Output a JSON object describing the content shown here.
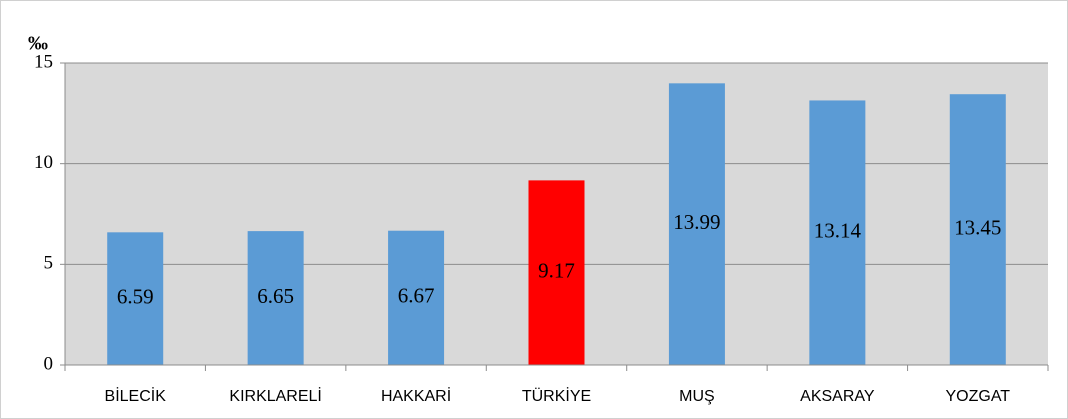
{
  "chart_data": {
    "type": "bar",
    "y_label": "‰",
    "categories": [
      "BİLECİK",
      "KIRKLARELİ",
      "HAKKARİ",
      "TÜRKİYE",
      "MUŞ",
      "AKSARAY",
      "YOZGAT"
    ],
    "values": [
      6.59,
      6.65,
      6.67,
      9.17,
      13.99,
      13.14,
      13.45
    ],
    "colors": [
      "#5b9bd5",
      "#5b9bd5",
      "#5b9bd5",
      "#ff0000",
      "#5b9bd5",
      "#5b9bd5",
      "#5b9bd5"
    ],
    "ylim": [
      0,
      15
    ],
    "yticks": [
      0,
      5,
      10,
      15
    ],
    "grid": true
  }
}
